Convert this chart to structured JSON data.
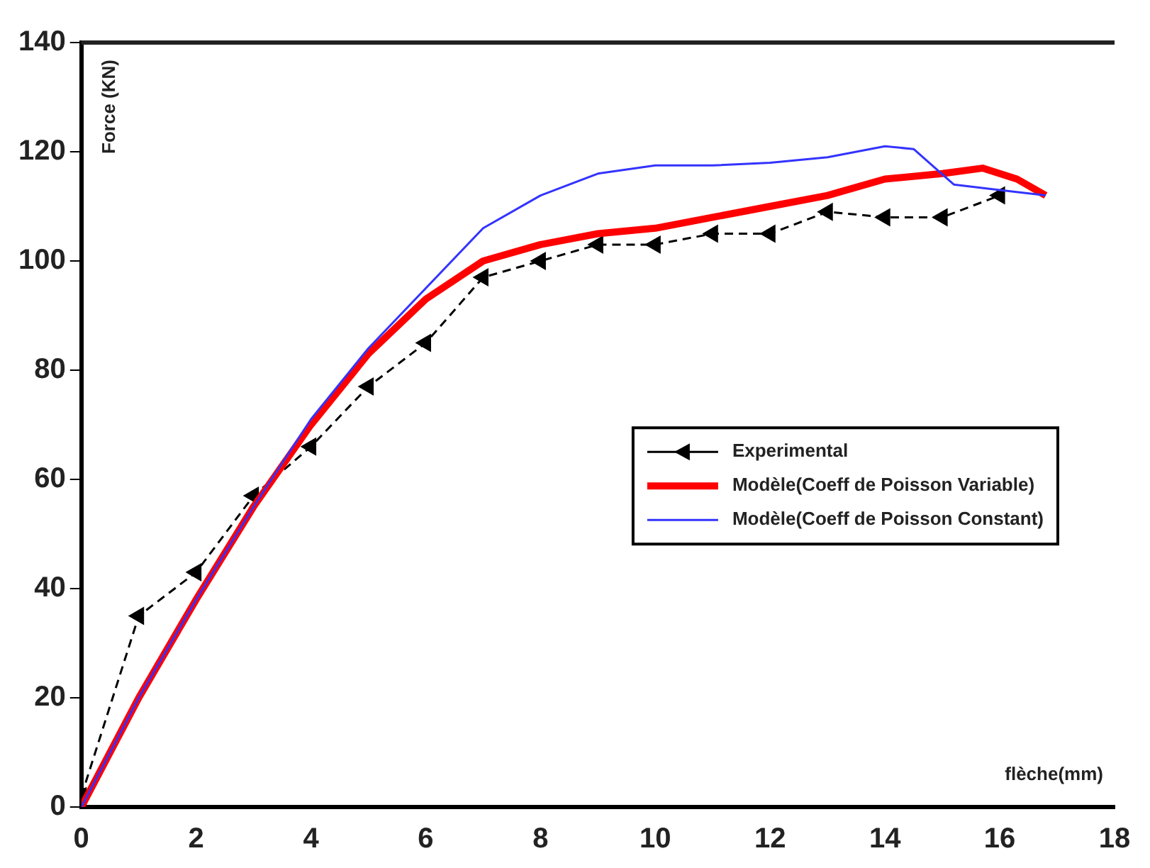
{
  "chart_data": {
    "type": "line",
    "xlabel": "flèche(mm)",
    "ylabel": "Force (KN)",
    "xlim": [
      0,
      18
    ],
    "ylim": [
      0,
      140
    ],
    "xticks": [
      0,
      2,
      4,
      6,
      8,
      10,
      12,
      14,
      16,
      18
    ],
    "yticks": [
      0,
      20,
      40,
      60,
      80,
      100,
      120,
      140
    ],
    "grid": false,
    "legend": "right",
    "series": [
      {
        "name": "Experimental",
        "color": "#000000",
        "marker": "triangle",
        "line_style": "dashed",
        "x": [
          0,
          1,
          2,
          3,
          4,
          5,
          6,
          7,
          8,
          9,
          10,
          11,
          12,
          13,
          14,
          15,
          16
        ],
        "values": [
          2,
          35,
          43,
          57,
          66,
          77,
          85,
          97,
          100,
          103,
          103,
          105,
          105,
          109,
          108,
          108,
          112
        ]
      },
      {
        "name": "Modèle(Coeff de Poisson Variable)",
        "color": "#ff0000",
        "marker": "none",
        "line_style": "solid",
        "x": [
          0,
          1,
          2,
          3,
          4,
          5,
          6,
          7,
          8,
          9,
          10,
          11,
          12,
          13,
          14,
          15,
          15.7,
          16.3,
          16.8
        ],
        "values": [
          0,
          20,
          38,
          55,
          70,
          83,
          93,
          100,
          103,
          105,
          106,
          108,
          110,
          112,
          115,
          116,
          117,
          115,
          112
        ]
      },
      {
        "name": "Modèle(Coeff de Poisson Constant)",
        "color": "#3333ff",
        "marker": "none",
        "line_style": "solid",
        "x": [
          0,
          1,
          2,
          3,
          4,
          5,
          6,
          7,
          8,
          9,
          10,
          11,
          12,
          13,
          14,
          14.5,
          15.2,
          16,
          16.8
        ],
        "values": [
          0,
          20,
          38,
          55,
          71,
          84,
          95,
          106,
          112,
          116,
          117.5,
          117.5,
          118,
          119,
          121,
          120.5,
          114,
          113,
          112
        ]
      }
    ]
  }
}
